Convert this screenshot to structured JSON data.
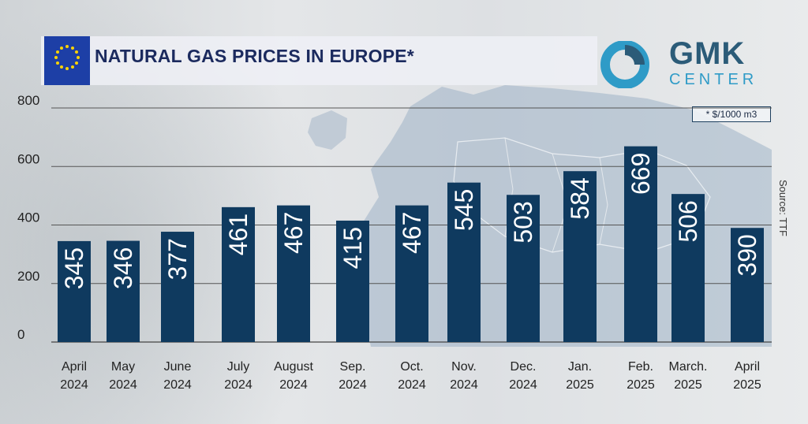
{
  "header": {
    "title": "NATURAL GAS PRICES IN EUROPE*",
    "logo_main": "GMK",
    "logo_sub": "CENTER",
    "unit_note": "* $/1000 m3",
    "source": "Source: TTF"
  },
  "colors": {
    "bar": "#0f3a5f",
    "title": "#1b2a5e",
    "logo_blue": "#2f9bc7",
    "logo_dark": "#2b5b78"
  },
  "chart_data": {
    "type": "bar",
    "title": "NATURAL GAS PRICES IN EUROPE*",
    "ylabel": "$/1000 m3",
    "xlabel": "",
    "ylim": [
      0,
      800
    ],
    "yticks": [
      0,
      200,
      400,
      600,
      800
    ],
    "categories": [
      [
        "April",
        "2024"
      ],
      [
        "May",
        "2024"
      ],
      [
        "June",
        "2024"
      ],
      [
        "July",
        "2024"
      ],
      [
        "August",
        "2024"
      ],
      [
        "Sep.",
        "2024"
      ],
      [
        "Oct.",
        "2024"
      ],
      [
        "Nov.",
        "2024"
      ],
      [
        "Dec.",
        "2024"
      ],
      [
        "Jan.",
        "2025"
      ],
      [
        "Feb.",
        "2025"
      ],
      [
        "March.",
        "2025"
      ],
      [
        "April",
        "2025"
      ]
    ],
    "values": [
      345,
      346,
      377,
      461,
      467,
      415,
      467,
      545,
      503,
      584,
      669,
      506,
      390
    ],
    "grid": true
  }
}
